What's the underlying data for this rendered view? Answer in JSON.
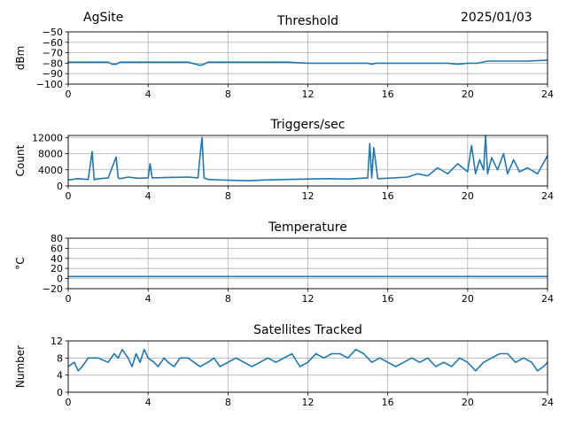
{
  "header": {
    "site": "AgSite",
    "date": "2025/01/03"
  },
  "colors": {
    "line": "#1f77b4",
    "grid": "#b0b0b0"
  },
  "chart_data": [
    {
      "type": "line",
      "title": "Threshold",
      "ylabel": "dBm",
      "xlim": [
        0,
        24
      ],
      "ylim": [
        -100,
        -50
      ],
      "xticks": [
        0,
        4,
        8,
        12,
        16,
        20,
        24
      ],
      "xtick_labels": [
        "0",
        "4",
        "8",
        "12",
        "16",
        "20",
        "24"
      ],
      "yticks": [
        -100,
        -90,
        -80,
        -70,
        -60,
        -50
      ],
      "ytick_labels": [
        "−100",
        "−90",
        "−80",
        "−70",
        "−60",
        "−50"
      ],
      "grid": true,
      "x": [
        0,
        1,
        2,
        2.2,
        2.4,
        2.6,
        3,
        4,
        5,
        6,
        6.4,
        6.6,
        6.8,
        7,
        8,
        9,
        10,
        11,
        12,
        13,
        14,
        14.5,
        15,
        15.2,
        15.4,
        16,
        17,
        18,
        19,
        19.5,
        20,
        20.5,
        21,
        22,
        23,
        24
      ],
      "y": [
        -79,
        -79,
        -79,
        -81,
        -81,
        -79,
        -79,
        -79,
        -79,
        -79,
        -81,
        -82,
        -81,
        -79,
        -79,
        -79,
        -79,
        -79,
        -80,
        -80,
        -80,
        -80,
        -80,
        -81,
        -80,
        -80,
        -80,
        -80,
        -80,
        -81,
        -80,
        -80,
        -78,
        -78,
        -78,
        -77
      ]
    },
    {
      "type": "line",
      "title": "Triggers/sec",
      "ylabel": "Count",
      "xlim": [
        0,
        24
      ],
      "ylim": [
        0,
        12500
      ],
      "xticks": [
        0,
        4,
        8,
        12,
        16,
        20,
        24
      ],
      "xtick_labels": [
        "0",
        "4",
        "8",
        "12",
        "16",
        "20",
        "24"
      ],
      "yticks": [
        0,
        4000,
        8000,
        12000
      ],
      "ytick_labels": [
        "0",
        "4000",
        "8000",
        "12000"
      ],
      "grid": true,
      "x": [
        0,
        0.5,
        1,
        1.2,
        1.3,
        1.4,
        2,
        2.4,
        2.5,
        2.6,
        3,
        3.5,
        4,
        4.1,
        4.2,
        5,
        6,
        6.5,
        6.6,
        6.7,
        6.8,
        6.9,
        7,
        8,
        9,
        10,
        11,
        12,
        13,
        14,
        15,
        15.1,
        15.2,
        15.3,
        15.5,
        16,
        17,
        17.5,
        18,
        18.5,
        19,
        19.5,
        20,
        20.2,
        20.4,
        20.6,
        20.8,
        20.9,
        21,
        21.2,
        21.5,
        21.8,
        22,
        22.3,
        22.6,
        23,
        23.5,
        24
      ],
      "y": [
        1500,
        1800,
        1600,
        8500,
        1500,
        1700,
        2000,
        7200,
        2000,
        1800,
        2200,
        1900,
        2000,
        5500,
        2000,
        2100,
        2200,
        2000,
        7500,
        12000,
        2000,
        1800,
        1600,
        1400,
        1300,
        1500,
        1600,
        1700,
        1800,
        1700,
        2000,
        10500,
        2000,
        9500,
        1800,
        1900,
        2200,
        3000,
        2500,
        4500,
        3000,
        5500,
        3500,
        10000,
        3000,
        6500,
        4000,
        12500,
        3000,
        7000,
        4000,
        8000,
        3000,
        6500,
        3500,
        4500,
        3000,
        7500
      ]
    },
    {
      "type": "line",
      "title": "Temperature",
      "ylabel": "°C",
      "xlim": [
        0,
        24
      ],
      "ylim": [
        -20,
        80
      ],
      "xticks": [
        0,
        4,
        8,
        12,
        16,
        20,
        24
      ],
      "xtick_labels": [
        "0",
        "4",
        "8",
        "12",
        "16",
        "20",
        "24"
      ],
      "yticks": [
        -20,
        0,
        20,
        40,
        60,
        80
      ],
      "ytick_labels": [
        "−20",
        "0",
        "20",
        "40",
        "60",
        "80"
      ],
      "grid": true,
      "x": [
        0,
        24
      ],
      "y": [
        4,
        4
      ]
    },
    {
      "type": "line",
      "title": "Satellites Tracked",
      "ylabel": "Number",
      "xlim": [
        0,
        24
      ],
      "ylim": [
        0,
        12
      ],
      "xticks": [
        0,
        4,
        8,
        12,
        16,
        20,
        24
      ],
      "xtick_labels": [
        "0",
        "4",
        "8",
        "12",
        "16",
        "20",
        "24"
      ],
      "yticks": [
        0,
        4,
        8,
        12
      ],
      "ytick_labels": [
        "0",
        "4",
        "8",
        "12"
      ],
      "grid": true,
      "x": [
        0,
        0.3,
        0.5,
        0.7,
        1,
        1.5,
        2,
        2.3,
        2.5,
        2.7,
        3,
        3.2,
        3.4,
        3.6,
        3.8,
        4,
        4.3,
        4.5,
        4.8,
        5,
        5.3,
        5.6,
        6,
        6.3,
        6.6,
        7,
        7.3,
        7.6,
        8,
        8.4,
        8.8,
        9.2,
        9.6,
        10,
        10.4,
        10.8,
        11.2,
        11.6,
        12,
        12.4,
        12.8,
        13.2,
        13.6,
        14,
        14.4,
        14.8,
        15.2,
        15.6,
        16,
        16.4,
        16.8,
        17.2,
        17.6,
        18,
        18.4,
        18.8,
        19.2,
        19.6,
        20,
        20.4,
        20.8,
        21.2,
        21.6,
        22,
        22.4,
        22.8,
        23.2,
        23.5,
        23.8,
        24
      ],
      "y": [
        6,
        7,
        5,
        6,
        8,
        8,
        7,
        9,
        8,
        10,
        8,
        6,
        9,
        7,
        10,
        8,
        7,
        6,
        8,
        7,
        6,
        8,
        8,
        7,
        6,
        7,
        8,
        6,
        7,
        8,
        7,
        6,
        7,
        8,
        7,
        8,
        9,
        6,
        7,
        9,
        8,
        9,
        9,
        8,
        10,
        9,
        7,
        8,
        7,
        6,
        7,
        8,
        7,
        8,
        6,
        7,
        6,
        8,
        7,
        5,
        7,
        8,
        9,
        9,
        7,
        8,
        7,
        5,
        6,
        7
      ]
    }
  ]
}
